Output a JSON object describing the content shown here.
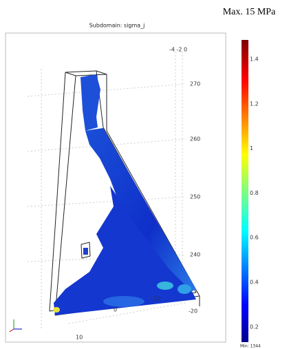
{
  "title": "Subdomain: sigma_j",
  "annotation": "Max. 15 MPa",
  "colorbar": {
    "ticks": [
      "1.4",
      "1.2",
      "1",
      "0.8",
      "0.6",
      "0.4",
      "0.2"
    ],
    "min_label": "Min: 1344"
  },
  "axes": {
    "y_ticks": "-4 -2 0",
    "z_ticks": [
      "270",
      "260",
      "250",
      "240"
    ],
    "x_ticks": [
      "-20",
      "-10",
      "0",
      "10"
    ]
  }
}
